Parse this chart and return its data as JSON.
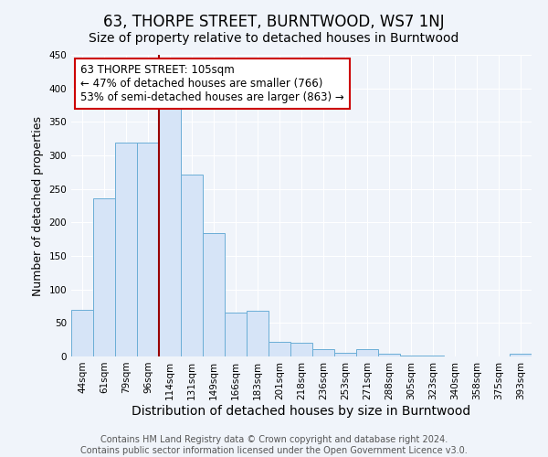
{
  "title": "63, THORPE STREET, BURNTWOOD, WS7 1NJ",
  "subtitle": "Size of property relative to detached houses in Burntwood",
  "xlabel": "Distribution of detached houses by size in Burntwood",
  "ylabel": "Number of detached properties",
  "categories": [
    "44sqm",
    "61sqm",
    "79sqm",
    "96sqm",
    "114sqm",
    "131sqm",
    "149sqm",
    "166sqm",
    "183sqm",
    "201sqm",
    "218sqm",
    "236sqm",
    "253sqm",
    "271sqm",
    "288sqm",
    "305sqm",
    "323sqm",
    "340sqm",
    "358sqm",
    "375sqm",
    "393sqm"
  ],
  "values": [
    70,
    236,
    319,
    319,
    370,
    272,
    184,
    65,
    68,
    22,
    20,
    11,
    6,
    11,
    4,
    1,
    1,
    0,
    0,
    0,
    4
  ],
  "bar_color": "#d6e4f7",
  "bar_edge_color": "#6baed6",
  "vline_x": 3.5,
  "vline_color": "#990000",
  "annotation_title": "63 THORPE STREET: 105sqm",
  "annotation_line1": "← 47% of detached houses are smaller (766)",
  "annotation_line2": "53% of semi-detached houses are larger (863) →",
  "annotation_box_color": "#ffffff",
  "annotation_box_edge_color": "#cc0000",
  "ylim": [
    0,
    450
  ],
  "yticks": [
    0,
    50,
    100,
    150,
    200,
    250,
    300,
    350,
    400,
    450
  ],
  "background_color": "#f0f4fa",
  "grid_color": "#ffffff",
  "footer_line1": "Contains HM Land Registry data © Crown copyright and database right 2024.",
  "footer_line2": "Contains public sector information licensed under the Open Government Licence v3.0.",
  "title_fontsize": 12,
  "subtitle_fontsize": 10,
  "xlabel_fontsize": 10,
  "ylabel_fontsize": 9,
  "tick_fontsize": 7.5,
  "annotation_fontsize": 8.5,
  "footer_fontsize": 7
}
